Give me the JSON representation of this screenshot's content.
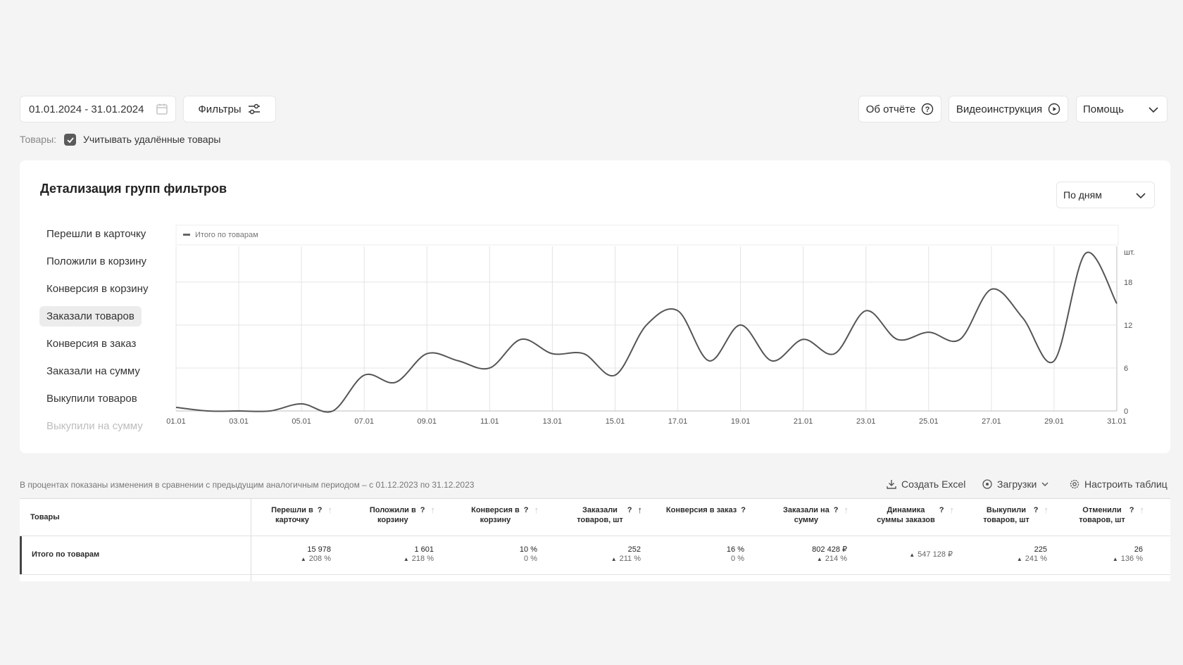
{
  "date_range": "01.01.2024 - 31.01.2024",
  "filters_label": "Фильтры",
  "about_report_label": "Об отчёте",
  "video_label": "Видеоинструкция",
  "help_label": "Помощь",
  "goods_label": "Товары:",
  "include_deleted_label": "Учитывать удалённые товары",
  "card_title": "Детализация групп фильтров",
  "period_select": "По дням",
  "metrics": [
    "Перешли в карточку",
    "Положили в корзину",
    "Конверсия в корзину",
    "Заказали товаров",
    "Конверсия в заказ",
    "Заказали на сумму",
    "Выкупили товаров",
    "Выкупили на сумму"
  ],
  "active_metric_index": 3,
  "legend_label": "Итого по товарам",
  "unit_label": "шт.",
  "chart_data": {
    "type": "line",
    "x": [
      "01.01",
      "02.01",
      "03.01",
      "04.01",
      "05.01",
      "06.01",
      "07.01",
      "08.01",
      "09.01",
      "10.01",
      "11.01",
      "12.01",
      "13.01",
      "14.01",
      "15.01",
      "16.01",
      "17.01",
      "18.01",
      "19.01",
      "20.01",
      "21.01",
      "22.01",
      "23.01",
      "24.01",
      "25.01",
      "26.01",
      "27.01",
      "28.01",
      "29.01",
      "30.01",
      "31.01"
    ],
    "x_tick_labels": [
      "01.01",
      "03.01",
      "05.01",
      "07.01",
      "09.01",
      "11.01",
      "13.01",
      "15.01",
      "17.01",
      "19.01",
      "21.01",
      "23.01",
      "25.01",
      "27.01",
      "29.01",
      "31.01"
    ],
    "series": [
      {
        "name": "Итого по товарам",
        "values": [
          0.5,
          0,
          0,
          0,
          1,
          0,
          5,
          4,
          8,
          7,
          6,
          10,
          8,
          8,
          5,
          12,
          14,
          7,
          12,
          7,
          10,
          8,
          14,
          10,
          11,
          10,
          17,
          13,
          7,
          22,
          15
        ]
      }
    ],
    "y_ticks": [
      0,
      6,
      12,
      18
    ],
    "ylim": [
      0,
      23
    ],
    "grid": true,
    "legend": "top-left"
  },
  "compare_note": "В процентах показаны изменения в сравнении с предыдущим аналогичным периодом – с 01.12.2023 по 31.12.2023",
  "create_excel_label": "Создать Excel",
  "downloads_label": "Загрузки",
  "configure_table_label": "Настроить таблиц",
  "table": {
    "first_col_header": "Товары",
    "columns": [
      {
        "l1": "Перешли в",
        "l2": "карточку"
      },
      {
        "l1": "Положили в",
        "l2": "корзину"
      },
      {
        "l1": "Конверсия в",
        "l2": "корзину"
      },
      {
        "l1": "Заказали",
        "l2": "товаров, шт"
      },
      {
        "l1": "Конверсия в заказ",
        "l2": ""
      },
      {
        "l1": "Заказали на",
        "l2": "сумму"
      },
      {
        "l1": "Динамика",
        "l2": "суммы заказов"
      },
      {
        "l1": "Выкупили",
        "l2": "товаров, шт"
      },
      {
        "l1": "Отменили",
        "l2": "товаров, шт"
      }
    ],
    "total_row": {
      "label": "Итого по товарам",
      "values": [
        "15 978",
        "1 601",
        "10 %",
        "252",
        "16 %",
        "802 428 ₽",
        "",
        "225",
        "26"
      ],
      "pcts": [
        "208 %",
        "218 %",
        "0 %",
        "211 %",
        "0 %",
        "214 %",
        "547 128 ₽",
        "241 %",
        "136 %"
      ]
    }
  }
}
